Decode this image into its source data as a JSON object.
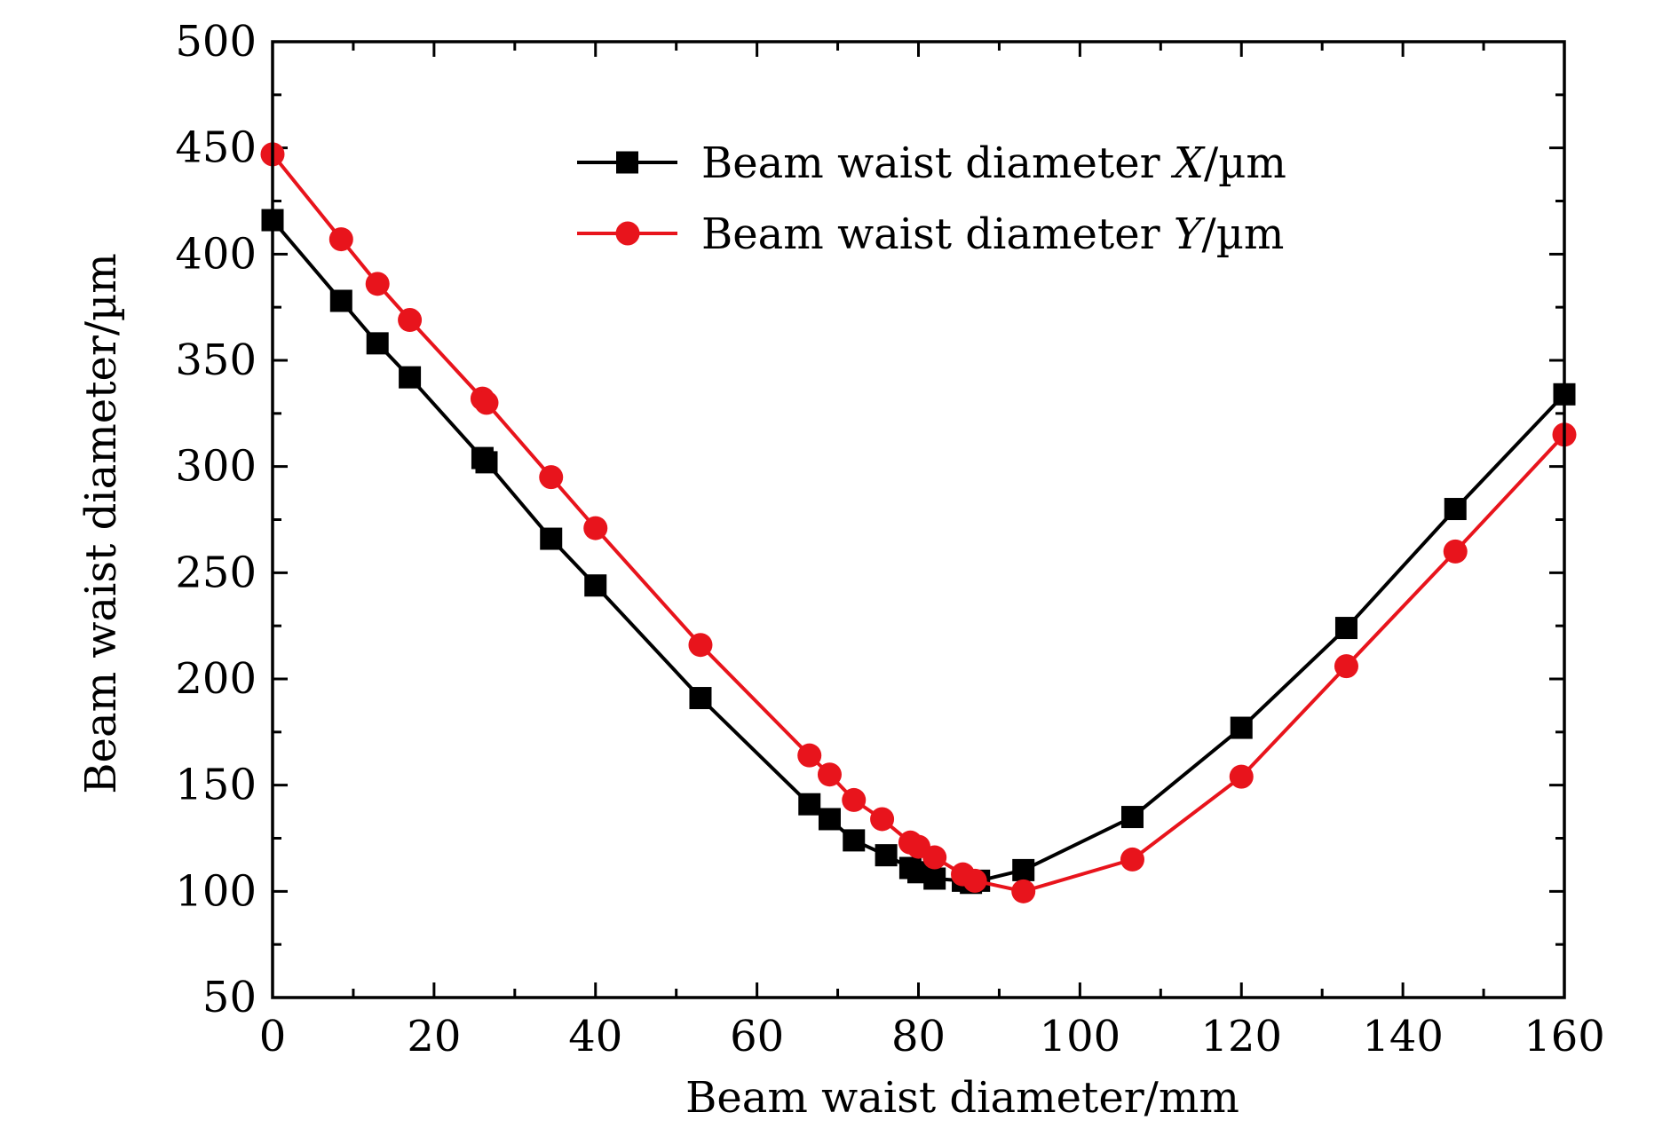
{
  "chart_data": {
    "type": "line",
    "title": "",
    "xlabel": "Beam waist diameter/mm",
    "ylabel": "Beam waist diameter/µm",
    "xlim": [
      0,
      160
    ],
    "ylim": [
      50,
      500
    ],
    "xticks": [
      0,
      20,
      40,
      60,
      80,
      100,
      120,
      140,
      160
    ],
    "yticks": [
      50,
      100,
      150,
      200,
      250,
      300,
      350,
      400,
      450,
      500
    ],
    "grid": false,
    "legend_position": "top-right",
    "series": [
      {
        "name": "Beam waist diameter X/µm",
        "legend_prefix": "Beam waist diameter ",
        "legend_var": "X",
        "legend_suffix": "/µm",
        "color": "#000000",
        "marker": "square",
        "x": [
          0,
          8.5,
          13,
          17,
          26,
          26.5,
          34.5,
          40,
          53,
          66.5,
          69,
          72,
          76,
          79,
          80,
          82,
          85.5,
          86.5,
          87.5,
          93,
          106.5,
          120,
          133,
          146.5,
          160
        ],
        "y": [
          416,
          378,
          358,
          342,
          304,
          302,
          266,
          244,
          191,
          141,
          134,
          124,
          117,
          111,
          109,
          106,
          105,
          104,
          105,
          110,
          135,
          177,
          224,
          280,
          334
        ]
      },
      {
        "name": "Beam waist diameter Y/µm",
        "legend_prefix": "Beam waist diameter ",
        "legend_var": "Y",
        "legend_suffix": "/µm",
        "color": "#e8141c",
        "marker": "circle",
        "x": [
          0,
          8.5,
          13,
          17,
          26,
          26.5,
          34.5,
          40,
          53,
          66.5,
          69,
          72,
          75.5,
          79,
          80,
          82,
          85.5,
          87,
          93,
          106.5,
          120,
          133,
          146.5,
          160
        ],
        "y": [
          447,
          407,
          386,
          369,
          332,
          330,
          295,
          271,
          216,
          164,
          155,
          143,
          134,
          123,
          121,
          116,
          108,
          105,
          100,
          115,
          154,
          206,
          260,
          315
        ]
      }
    ]
  }
}
